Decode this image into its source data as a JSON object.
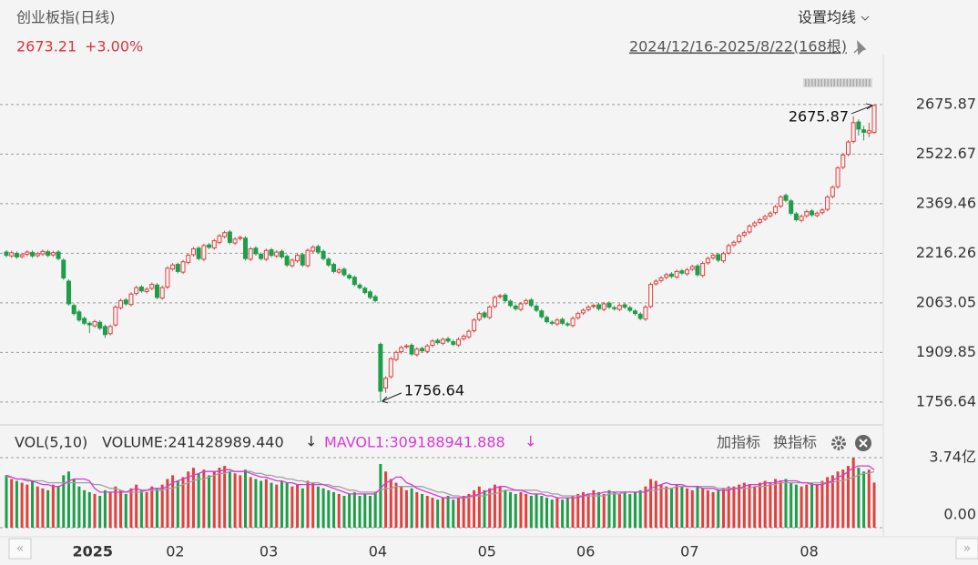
{
  "chart_data": {
    "type": "candlestick",
    "title": "创业板指(日线)",
    "last_price": 2673.21,
    "change": {
      "value": 3.0,
      "label": "+3.00%"
    },
    "ma_setting": "设置均线",
    "range_text": "2024/12/16-2025/8/22(168根)",
    "up_color": "#e0413f",
    "down_color": "#1f9e4a",
    "ylim": [
      1700,
      2760
    ],
    "yticks": [
      2675.87,
      2522.67,
      2369.46,
      2216.26,
      2063.05,
      1909.85,
      1756.64
    ],
    "grid": true,
    "max_note": 2675.87,
    "min_note": 1756.64,
    "categories": [
      null,
      null,
      null,
      null,
      null,
      null,
      null,
      null,
      null,
      null,
      null,
      null,
      "2025",
      null,
      null,
      null,
      null,
      null,
      null,
      null,
      null,
      null,
      null,
      null,
      null,
      null,
      null,
      null,
      null,
      null,
      "02",
      null,
      null,
      null,
      null,
      null,
      null,
      null,
      null,
      null,
      null,
      null,
      null,
      null,
      null,
      null,
      null,
      null,
      "03",
      null,
      null,
      null,
      null,
      null,
      null,
      null,
      null,
      null,
      null,
      null,
      null,
      null,
      null,
      null,
      null,
      null,
      null,
      null,
      null,
      "04",
      null,
      null,
      null,
      null,
      null,
      null,
      null,
      null,
      null,
      null,
      null,
      null,
      null,
      null,
      null,
      null,
      null,
      null,
      null,
      null,
      "05",
      null,
      null,
      null,
      null,
      null,
      null,
      null,
      null,
      null,
      null,
      null,
      null,
      null,
      null,
      null,
      null,
      null,
      null,
      "06",
      null,
      null,
      null,
      null,
      null,
      null,
      null,
      null,
      null,
      null,
      null,
      null,
      null,
      null,
      null,
      null,
      null,
      null,
      null,
      "07",
      null,
      null,
      null,
      null,
      null,
      null,
      null,
      null,
      null,
      null,
      null,
      null,
      null,
      null,
      null,
      null,
      null,
      null,
      null,
      null,
      null,
      null,
      "08",
      null,
      null,
      null,
      null,
      null,
      null,
      null,
      null,
      null,
      null,
      null,
      null,
      null,
      null,
      null
    ],
    "open": [
      2220,
      2208,
      2216,
      2206,
      2213,
      2219,
      2209,
      2214,
      2221,
      2211,
      2220,
      2195,
      2130,
      2055,
      2035,
      2015,
      2000,
      1992,
      2003,
      1990,
      1968,
      1995,
      2048,
      2072,
      2058,
      2092,
      2112,
      2098,
      2108,
      2118,
      2078,
      2112,
      2168,
      2182,
      2158,
      2188,
      2212,
      2232,
      2198,
      2242,
      2233,
      2250,
      2268,
      2282,
      2248,
      2262,
      2263,
      2198,
      2232,
      2213,
      2198,
      2227,
      2208,
      2222,
      2207,
      2178,
      2193,
      2212,
      2178,
      2223,
      2237,
      2222,
      2198,
      2182,
      2158,
      2167,
      2148,
      2142,
      2118,
      2108,
      2097,
      2082,
      1935,
      1800,
      1835,
      1888,
      1912,
      1927,
      1932,
      1903,
      1922,
      1913,
      1932,
      1947,
      1938,
      1952,
      1943,
      1933,
      1952,
      1958,
      1977,
      2012,
      2032,
      2018,
      2052,
      2082,
      2087,
      2068,
      2053,
      2043,
      2062,
      2072,
      2053,
      2038,
      2018,
      2003,
      1998,
      2012,
      1998,
      1993,
      2017,
      2032,
      2042,
      2052,
      2057,
      2043,
      2062,
      2048,
      2043,
      2057,
      2048,
      2038,
      2028,
      2013,
      2052,
      2122,
      2132,
      2142,
      2152,
      2143,
      2162,
      2153,
      2167,
      2177,
      2148,
      2187,
      2202,
      2212,
      2193,
      2217,
      2242,
      2252,
      2272,
      2282,
      2302,
      2312,
      2322,
      2332,
      2342,
      2362,
      2395,
      2378,
      2338,
      2318,
      2332,
      2347,
      2333,
      2342,
      2352,
      2392,
      2422,
      2482,
      2522,
      2562,
      2622,
      2598,
      2588,
      2590
    ],
    "close": [
      2210,
      2218,
      2205,
      2212,
      2220,
      2208,
      2215,
      2222,
      2210,
      2218,
      2200,
      2140,
      2060,
      2030,
      2010,
      2000,
      1995,
      2005,
      1985,
      1965,
      1990,
      2050,
      2070,
      2060,
      2090,
      2110,
      2100,
      2105,
      2120,
      2080,
      2110,
      2170,
      2180,
      2160,
      2190,
      2210,
      2230,
      2200,
      2240,
      2235,
      2255,
      2270,
      2280,
      2250,
      2260,
      2265,
      2200,
      2230,
      2215,
      2200,
      2225,
      2210,
      2220,
      2205,
      2180,
      2195,
      2210,
      2180,
      2225,
      2235,
      2220,
      2200,
      2180,
      2160,
      2165,
      2150,
      2140,
      2120,
      2110,
      2095,
      2080,
      2070,
      1790,
      1830,
      1890,
      1910,
      1925,
      1930,
      1905,
      1920,
      1915,
      1930,
      1945,
      1940,
      1950,
      1945,
      1935,
      1950,
      1960,
      1975,
      2010,
      2030,
      2020,
      2050,
      2080,
      2085,
      2070,
      2055,
      2045,
      2060,
      2070,
      2055,
      2040,
      2020,
      2005,
      2000,
      2010,
      2000,
      1995,
      2015,
      2030,
      2040,
      2050,
      2055,
      2045,
      2060,
      2050,
      2045,
      2055,
      2050,
      2040,
      2030,
      2015,
      2050,
      2120,
      2130,
      2140,
      2150,
      2145,
      2160,
      2155,
      2165,
      2175,
      2150,
      2185,
      2200,
      2210,
      2195,
      2215,
      2240,
      2250,
      2270,
      2280,
      2300,
      2310,
      2320,
      2330,
      2340,
      2360,
      2390,
      2380,
      2340,
      2320,
      2330,
      2345,
      2335,
      2340,
      2350,
      2390,
      2420,
      2480,
      2520,
      2560,
      2620,
      2600,
      2590,
      2595,
      2673.21
    ],
    "low": [
      2204,
      2202,
      2199,
      2200,
      2207,
      2202,
      2203,
      2208,
      2204,
      2205,
      2194,
      2134,
      2054,
      2024,
      2004,
      1994,
      1970,
      1986,
      1979,
      1955,
      1962,
      1989,
      2042,
      2054,
      2052,
      2086,
      2094,
      2092,
      2102,
      2074,
      2072,
      2106,
      2162,
      2154,
      2152,
      2182,
      2206,
      2194,
      2192,
      2229,
      2227,
      2244,
      2262,
      2244,
      2242,
      2256,
      2194,
      2192,
      2209,
      2194,
      2192,
      2204,
      2202,
      2199,
      2174,
      2172,
      2187,
      2174,
      2172,
      2217,
      2214,
      2194,
      2174,
      2154,
      2152,
      2144,
      2134,
      2114,
      2104,
      2089,
      2074,
      2064,
      1756.64,
      1785,
      1829,
      1882,
      1906,
      1921,
      1899,
      1897,
      1909,
      1907,
      1926,
      1934,
      1932,
      1939,
      1929,
      1927,
      1946,
      1952,
      1971,
      2006,
      2014,
      2012,
      2046,
      2076,
      2064,
      2049,
      2039,
      2037,
      2056,
      2049,
      2034,
      2014,
      1999,
      1994,
      1992,
      1994,
      1989,
      1987,
      2011,
      2026,
      2036,
      2046,
      2039,
      2037,
      2044,
      2039,
      2037,
      2044,
      2034,
      2024,
      2009,
      2007,
      2046,
      2116,
      2126,
      2136,
      2139,
      2137,
      2149,
      2147,
      2161,
      2144,
      2142,
      2181,
      2196,
      2189,
      2187,
      2211,
      2236,
      2246,
      2266,
      2276,
      2296,
      2306,
      2316,
      2326,
      2336,
      2356,
      2374,
      2334,
      2314,
      2312,
      2326,
      2329,
      2327,
      2336,
      2346,
      2386,
      2416,
      2476,
      2516,
      2556,
      2580,
      2565,
      2575,
      2585
    ],
    "high": [
      2226,
      2224,
      2222,
      2218,
      2226,
      2225,
      2221,
      2228,
      2227,
      2224,
      2226,
      2201,
      2136,
      2061,
      2041,
      2021,
      2006,
      2011,
      2009,
      1996,
      1996,
      2056,
      2076,
      2078,
      2096,
      2116,
      2118,
      2111,
      2126,
      2124,
      2116,
      2176,
      2186,
      2188,
      2196,
      2216,
      2236,
      2238,
      2246,
      2248,
      2261,
      2276,
      2286,
      2288,
      2266,
      2271,
      2269,
      2236,
      2238,
      2219,
      2231,
      2233,
      2226,
      2228,
      2213,
      2201,
      2216,
      2218,
      2231,
      2241,
      2243,
      2228,
      2204,
      2188,
      2171,
      2173,
      2154,
      2148,
      2124,
      2114,
      2103,
      2088,
      1941,
      1836,
      1896,
      1916,
      1931,
      1936,
      1938,
      1926,
      1928,
      1936,
      1951,
      1953,
      1956,
      1958,
      1949,
      1956,
      1966,
      1981,
      2016,
      2036,
      2038,
      2056,
      2086,
      2091,
      2093,
      2074,
      2059,
      2066,
      2076,
      2078,
      2059,
      2044,
      2024,
      2009,
      2016,
      2018,
      2004,
      2021,
      2036,
      2046,
      2056,
      2061,
      2063,
      2066,
      2068,
      2054,
      2061,
      2063,
      2054,
      2044,
      2034,
      2056,
      2126,
      2136,
      2146,
      2156,
      2158,
      2166,
      2168,
      2171,
      2181,
      2183,
      2191,
      2206,
      2216,
      2218,
      2221,
      2246,
      2256,
      2276,
      2286,
      2306,
      2316,
      2326,
      2336,
      2346,
      2366,
      2396,
      2401,
      2384,
      2344,
      2336,
      2351,
      2353,
      2346,
      2356,
      2396,
      2426,
      2486,
      2526,
      2566,
      2640,
      2630,
      2610,
      2620,
      2675.87
    ],
    "volume": {
      "label": "VOL(5,10)",
      "volume_text": "VOLUME:241428989.440",
      "mavol_text": "MAVOL1:309188941.888",
      "add_indicator": "加指标",
      "switch_indicator": "换指标",
      "ylim": [
        0,
        3.74
      ],
      "yticks": [
        {
          "value": 3.74,
          "label": "3.74亿"
        },
        {
          "value": 0,
          "label": "0.00"
        }
      ],
      "values": [
        2.8,
        2.6,
        2.5,
        2.4,
        2.3,
        2.5,
        2.2,
        2.1,
        2.0,
        2.3,
        2.2,
        2.8,
        3.0,
        2.6,
        2.2,
        2.0,
        1.9,
        1.8,
        1.7,
        2.0,
        1.9,
        2.2,
        2.0,
        1.8,
        2.1,
        2.3,
        2.0,
        1.9,
        2.2,
        2.1,
        2.3,
        2.6,
        2.8,
        2.5,
        2.7,
        3.0,
        3.2,
        2.9,
        3.1,
        2.8,
        3.0,
        3.2,
        3.3,
        3.0,
        2.9,
        2.8,
        3.1,
        2.7,
        2.6,
        2.5,
        2.6,
        2.4,
        2.3,
        2.5,
        2.4,
        2.2,
        2.3,
        2.1,
        2.5,
        2.4,
        2.2,
        2.1,
        2.0,
        1.9,
        1.8,
        1.7,
        1.8,
        1.9,
        1.7,
        1.8,
        1.7,
        1.9,
        3.4,
        3.0,
        2.6,
        2.4,
        2.2,
        2.0,
        2.1,
        1.9,
        1.8,
        1.7,
        1.6,
        1.5,
        1.6,
        1.7,
        1.5,
        1.6,
        1.7,
        1.8,
        2.0,
        2.2,
        2.0,
        2.1,
        2.3,
        2.2,
        2.0,
        1.9,
        1.8,
        1.9,
        1.8,
        1.7,
        1.8,
        1.7,
        1.6,
        1.5,
        1.6,
        1.5,
        1.6,
        1.7,
        1.8,
        1.9,
        1.8,
        2.0,
        1.9,
        1.8,
        2.0,
        1.9,
        1.8,
        1.9,
        1.8,
        1.9,
        2.0,
        2.2,
        2.6,
        2.5,
        2.3,
        2.2,
        2.1,
        2.3,
        2.2,
        2.1,
        2.0,
        2.2,
        2.1,
        2.0,
        1.9,
        2.0,
        2.1,
        2.2,
        2.2,
        2.3,
        2.4,
        2.3,
        2.2,
        2.4,
        2.5,
        2.4,
        2.6,
        2.5,
        2.6,
        2.4,
        2.3,
        2.2,
        2.3,
        2.4,
        2.3,
        2.5,
        2.7,
        2.8,
        3.0,
        3.1,
        3.3,
        3.74,
        3.2,
        3.0,
        3.1,
        2.41
      ],
      "ma5": {
        "color": "#d63bd6",
        "values": [
          2.8,
          2.7,
          2.6,
          2.6,
          2.5,
          2.5,
          2.4,
          2.3,
          2.3,
          2.2,
          2.2,
          2.3,
          2.5,
          2.6,
          2.6,
          2.6,
          2.5,
          2.1,
          1.9,
          1.9,
          1.9,
          1.9,
          1.9,
          1.9,
          2.0,
          2.1,
          2.0,
          2.0,
          2.1,
          2.1,
          2.1,
          2.2,
          2.4,
          2.5,
          2.6,
          2.7,
          2.8,
          2.9,
          3.0,
          3.0,
          3.0,
          3.0,
          3.1,
          3.1,
          3.0,
          3.0,
          3.0,
          2.9,
          2.8,
          2.7,
          2.7,
          2.6,
          2.5,
          2.5,
          2.4,
          2.4,
          2.3,
          2.3,
          2.3,
          2.3,
          2.3,
          2.3,
          2.2,
          2.1,
          2.0,
          1.9,
          1.8,
          1.8,
          1.8,
          1.8,
          1.8,
          1.8,
          2.1,
          2.4,
          2.5,
          2.7,
          2.7,
          2.4,
          2.3,
          2.1,
          2.0,
          1.9,
          1.8,
          1.7,
          1.6,
          1.6,
          1.6,
          1.6,
          1.6,
          1.7,
          1.7,
          1.8,
          1.9,
          2.0,
          2.1,
          2.2,
          2.2,
          2.1,
          2.0,
          2.0,
          1.9,
          1.8,
          1.8,
          1.8,
          1.7,
          1.7,
          1.6,
          1.6,
          1.6,
          1.6,
          1.6,
          1.7,
          1.8,
          1.8,
          1.8,
          1.9,
          1.9,
          1.9,
          1.9,
          1.9,
          1.9,
          1.9,
          1.9,
          1.9,
          2.1,
          2.2,
          2.3,
          2.4,
          2.3,
          2.3,
          2.3,
          2.2,
          2.2,
          2.2,
          2.1,
          2.1,
          2.1,
          2.0,
          2.0,
          2.0,
          2.1,
          2.1,
          2.2,
          2.3,
          2.3,
          2.3,
          2.4,
          2.4,
          2.4,
          2.5,
          2.5,
          2.5,
          2.5,
          2.4,
          2.4,
          2.3,
          2.3,
          2.3,
          2.4,
          2.5,
          2.7,
          2.8,
          3.0,
          3.2,
          3.3,
          3.3,
          3.3,
          3.09
        ]
      },
      "ma10": {
        "color": "#a0a0a0",
        "values": [
          2.7,
          2.7,
          2.6,
          2.6,
          2.6,
          2.5,
          2.5,
          2.5,
          2.4,
          2.4,
          2.4,
          2.4,
          2.4,
          2.4,
          2.4,
          2.4,
          2.4,
          2.3,
          2.3,
          2.2,
          2.1,
          2.1,
          2.0,
          1.9,
          1.9,
          1.9,
          1.9,
          2.0,
          2.0,
          2.0,
          2.0,
          2.1,
          2.1,
          2.2,
          2.3,
          2.4,
          2.5,
          2.6,
          2.6,
          2.7,
          2.8,
          2.9,
          2.9,
          3.0,
          3.0,
          3.0,
          3.0,
          3.0,
          2.9,
          2.9,
          2.8,
          2.8,
          2.7,
          2.7,
          2.6,
          2.6,
          2.5,
          2.5,
          2.4,
          2.4,
          2.4,
          2.3,
          2.3,
          2.2,
          2.2,
          2.1,
          2.0,
          2.0,
          1.9,
          1.9,
          1.9,
          1.9,
          2.0,
          2.1,
          2.1,
          2.2,
          2.2,
          2.2,
          2.2,
          2.2,
          2.2,
          2.1,
          2.0,
          1.9,
          1.9,
          1.8,
          1.7,
          1.7,
          1.6,
          1.6,
          1.7,
          1.7,
          1.7,
          1.8,
          1.8,
          1.9,
          2.0,
          2.0,
          2.0,
          2.0,
          2.0,
          2.0,
          2.0,
          1.9,
          1.9,
          1.8,
          1.8,
          1.7,
          1.7,
          1.7,
          1.7,
          1.7,
          1.7,
          1.7,
          1.7,
          1.7,
          1.8,
          1.8,
          1.8,
          1.9,
          1.9,
          1.9,
          1.9,
          1.9,
          2.0,
          2.0,
          2.1,
          2.1,
          2.1,
          2.2,
          2.2,
          2.2,
          2.2,
          2.2,
          2.2,
          2.2,
          2.2,
          2.1,
          2.1,
          2.1,
          2.1,
          2.1,
          2.1,
          2.1,
          2.2,
          2.2,
          2.2,
          2.3,
          2.3,
          2.4,
          2.4,
          2.4,
          2.4,
          2.4,
          2.4,
          2.4,
          2.4,
          2.4,
          2.4,
          2.4,
          2.5,
          2.5,
          2.6,
          2.7,
          2.8,
          2.9,
          2.9,
          3.0
        ]
      }
    }
  }
}
